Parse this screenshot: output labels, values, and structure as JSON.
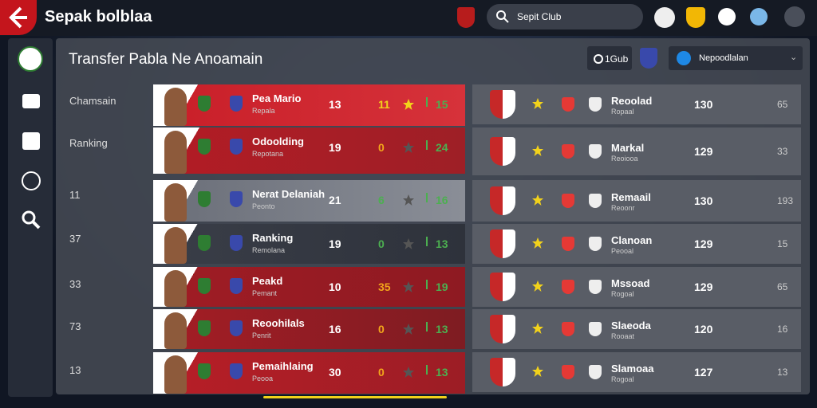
{
  "header": {
    "title": "Sepak bolblaa",
    "search": "Sepit Club"
  },
  "panel": {
    "title": "Transfer Pabla Ne Anoamain",
    "club_button": "1Gub",
    "dropdown": "Nepoodlalan"
  },
  "sidebar_labels": [
    "Chamsain",
    "Ranking",
    "11",
    "37",
    "33",
    "73",
    "13"
  ],
  "left_rows": [
    {
      "name": "Pea Mario",
      "sub": "Repala",
      "a": "13",
      "b": "11",
      "c": "15"
    },
    {
      "name": "Odoolding",
      "sub": "Repotana",
      "a": "19",
      "b": "0",
      "c": "24"
    },
    {
      "name": "Nerat Delaniah",
      "sub": "Peonto",
      "a": "21",
      "b": "6",
      "c": "16"
    },
    {
      "name": "Ranking",
      "sub": "Remolana",
      "a": "19",
      "b": "0",
      "c": "13"
    },
    {
      "name": "Peakd",
      "sub": "Pemant",
      "a": "10",
      "b": "35",
      "c": "19"
    },
    {
      "name": "Reoohilals",
      "sub": "Penrit",
      "a": "16",
      "b": "0",
      "c": "13"
    },
    {
      "name": "Pemaihlaing",
      "sub": "Peooa",
      "a": "30",
      "b": "0",
      "c": "13"
    }
  ],
  "right_rows": [
    {
      "name": "Reoolad",
      "sub": "Ropaal",
      "a": "130",
      "b": "65"
    },
    {
      "name": "Markal",
      "sub": "Reoiooa",
      "a": "129",
      "b": "33"
    },
    {
      "name": "Remaail",
      "sub": "Reoonr",
      "a": "130",
      "b": "193"
    },
    {
      "name": "Clanoan",
      "sub": "Peooal",
      "a": "129",
      "b": "15"
    },
    {
      "name": "Mssoad",
      "sub": "Rogoal",
      "a": "129",
      "b": "65"
    },
    {
      "name": "Slaeoda",
      "sub": "Rooaat",
      "a": "120",
      "b": "16"
    },
    {
      "name": "Slamoaa",
      "sub": "Rogoal",
      "a": "127",
      "b": "13"
    }
  ]
}
